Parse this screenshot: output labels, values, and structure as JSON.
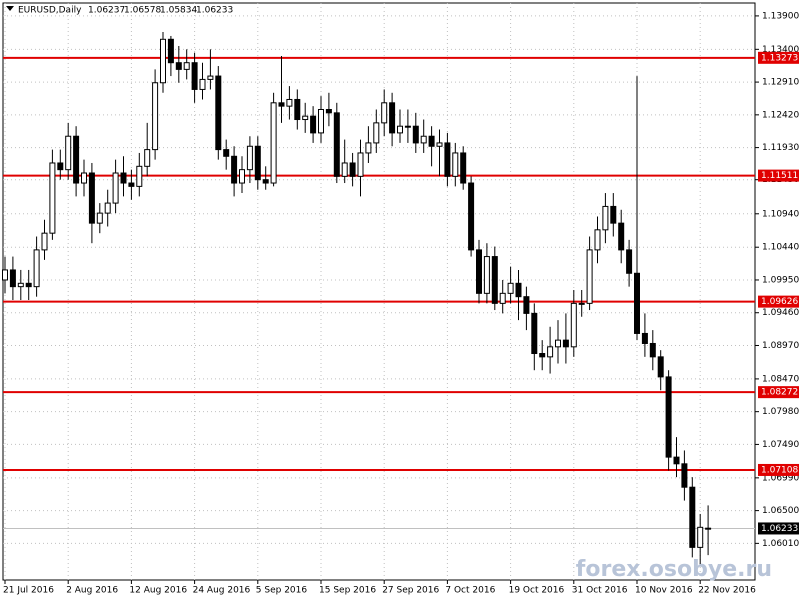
{
  "chart_data": {
    "type": "candlestick",
    "title": "EURUSD,Daily",
    "categories": [
      "21 Jul 2016",
      null,
      null,
      null,
      null,
      null,
      null,
      null,
      "2 Aug 2016",
      null,
      null,
      null,
      null,
      null,
      null,
      null,
      "12 Aug 2016",
      null,
      null,
      null,
      null,
      null,
      null,
      null,
      "24 Aug 2016",
      null,
      null,
      null,
      null,
      null,
      null,
      null,
      "5 Sep 2016",
      null,
      null,
      null,
      null,
      null,
      null,
      null,
      "15 Sep 2016",
      null,
      null,
      null,
      null,
      null,
      null,
      null,
      "27 Sep 2016",
      null,
      null,
      null,
      null,
      null,
      null,
      null,
      "7 Oct 2016",
      null,
      null,
      null,
      null,
      null,
      null,
      null,
      "19 Oct 2016",
      null,
      null,
      null,
      null,
      null,
      null,
      null,
      "31 Oct 2016",
      null,
      null,
      null,
      null,
      null,
      null,
      null,
      "10 Nov 2016",
      null,
      null,
      null,
      null,
      null,
      null,
      null,
      "22 Nov 2016",
      null
    ],
    "open": [
      1.0995,
      1.101,
      1.0985,
      1.099,
      1.0985,
      1.104,
      1.1065,
      1.117,
      1.116,
      1.121,
      1.114,
      1.1155,
      1.108,
      1.1095,
      1.111,
      1.1155,
      1.114,
      1.1135,
      1.1165,
      1.119,
      1.129,
      1.1355,
      1.132,
      1.131,
      1.132,
      1.128,
      1.1295,
      1.13,
      1.119,
      1.118,
      1.114,
      1.116,
      1.1195,
      1.1145,
      1.114,
      1.126,
      1.1255,
      1.1265,
      1.1235,
      1.124,
      1.1215,
      1.125,
      1.1245,
      1.115,
      1.117,
      1.115,
      1.1185,
      1.12,
      1.123,
      1.126,
      1.1215,
      1.1225,
      1.1225,
      1.12,
      1.121,
      1.1195,
      1.12,
      1.115,
      1.1185,
      1.114,
      1.104,
      1.0975,
      1.103,
      1.096,
      1.0975,
      1.099,
      1.097,
      1.0945,
      1.0885,
      1.088,
      1.0895,
      1.0905,
      1.0895,
      1.096,
      1.096,
      1.104,
      1.107,
      1.1105,
      1.108,
      1.104,
      1.1005,
      1.0915,
      1.09,
      1.088,
      1.085,
      1.073,
      1.072,
      1.0685,
      1.0595,
      1.06237
    ],
    "high": [
      1.103,
      1.103,
      1.101,
      1.101,
      1.106,
      1.1085,
      1.119,
      1.119,
      1.123,
      1.1225,
      1.1175,
      1.117,
      1.111,
      1.113,
      1.1175,
      1.118,
      1.116,
      1.1185,
      1.123,
      1.131,
      1.1366,
      1.136,
      1.1345,
      1.134,
      1.1335,
      1.132,
      1.134,
      1.1315,
      1.1205,
      1.1195,
      1.118,
      1.121,
      1.121,
      1.1165,
      1.1275,
      1.133,
      1.1285,
      1.128,
      1.126,
      1.1255,
      1.127,
      1.1275,
      1.126,
      1.1205,
      1.1185,
      1.1205,
      1.1225,
      1.125,
      1.128,
      1.1275,
      1.125,
      1.125,
      1.1245,
      1.1235,
      1.1225,
      1.122,
      1.1215,
      1.12,
      1.1195,
      1.115,
      1.1055,
      1.105,
      1.1045,
      1.0995,
      1.1015,
      1.101,
      1.0985,
      1.096,
      1.0905,
      1.0925,
      1.0935,
      1.0945,
      1.098,
      1.098,
      1.106,
      1.109,
      1.1125,
      1.1125,
      1.11,
      1.1055,
      1.13,
      1.0945,
      1.092,
      1.089,
      1.086,
      1.076,
      1.074,
      1.07,
      1.0645,
      1.06578
    ],
    "low": [
      1.0975,
      1.0965,
      1.0965,
      1.0965,
      1.097,
      1.1025,
      1.1055,
      1.1145,
      1.1145,
      1.112,
      1.112,
      1.105,
      1.1065,
      1.1075,
      1.1095,
      1.112,
      1.1115,
      1.112,
      1.115,
      1.1175,
      1.1275,
      1.13,
      1.129,
      1.1295,
      1.126,
      1.1265,
      1.128,
      1.1175,
      1.116,
      1.112,
      1.1125,
      1.114,
      1.113,
      1.113,
      1.1135,
      1.123,
      1.1235,
      1.122,
      1.1215,
      1.12,
      1.12,
      1.1225,
      1.114,
      1.114,
      1.1135,
      1.112,
      1.117,
      1.1185,
      1.121,
      1.1195,
      1.12,
      1.12,
      1.1185,
      1.1185,
      1.1165,
      1.115,
      1.1135,
      1.1135,
      1.113,
      1.103,
      1.096,
      1.096,
      1.095,
      1.0945,
      1.096,
      1.0935,
      1.092,
      1.086,
      1.086,
      1.0855,
      1.087,
      1.087,
      1.088,
      1.094,
      1.095,
      1.102,
      1.105,
      1.106,
      1.102,
      1.0985,
      1.0905,
      1.088,
      1.086,
      1.083,
      1.071,
      1.07,
      1.0665,
      1.058,
      1.057,
      1.05834
    ],
    "close": [
      1.101,
      1.0985,
      1.099,
      1.0985,
      1.104,
      1.1065,
      1.117,
      1.116,
      1.121,
      1.114,
      1.1155,
      1.108,
      1.1095,
      1.111,
      1.1155,
      1.114,
      1.1135,
      1.1165,
      1.119,
      1.129,
      1.1355,
      1.132,
      1.131,
      1.132,
      1.128,
      1.1295,
      1.13,
      1.119,
      1.118,
      1.114,
      1.116,
      1.1195,
      1.1145,
      1.114,
      1.126,
      1.1255,
      1.1265,
      1.1235,
      1.124,
      1.1215,
      1.125,
      1.1245,
      1.115,
      1.117,
      1.115,
      1.1185,
      1.12,
      1.123,
      1.126,
      1.1215,
      1.1225,
      1.1225,
      1.12,
      1.121,
      1.1195,
      1.12,
      1.115,
      1.1185,
      1.114,
      1.104,
      1.0975,
      1.103,
      1.096,
      1.0975,
      1.099,
      1.097,
      1.0945,
      1.0885,
      1.088,
      1.0895,
      1.0905,
      1.0895,
      1.096,
      1.096,
      1.104,
      1.107,
      1.1105,
      1.108,
      1.104,
      1.1005,
      1.0915,
      1.09,
      1.088,
      1.085,
      1.073,
      1.072,
      1.0685,
      1.0595,
      1.0625,
      1.06233
    ],
    "levels": [
      1.13273,
      1.11511,
      1.09626,
      1.08272,
      1.07108
    ],
    "level_color": "#e00000",
    "ylim": [
      1.05462,
      1.14093
    ],
    "yticks": [
      {
        "value": 1.139,
        "label": "1.13900"
      },
      {
        "value": 1.134,
        "label": "1.13400"
      },
      {
        "value": 1.1291,
        "label": "1.12910"
      },
      {
        "value": 1.1242,
        "label": "1.12420"
      },
      {
        "value": 1.1193,
        "label": "1.11930"
      },
      {
        "value": 1.1145,
        "label": "1.11450"
      },
      {
        "value": 1.1094,
        "label": "1.10940"
      },
      {
        "value": 1.1044,
        "label": "1.10440"
      },
      {
        "value": 1.0995,
        "label": "1.09950"
      },
      {
        "value": 1.0946,
        "label": "1.09460"
      },
      {
        "value": 1.0897,
        "label": "1.08970"
      },
      {
        "value": 1.0847,
        "label": "1.08470"
      },
      {
        "value": 1.0798,
        "label": "1.07980"
      },
      {
        "value": 1.0749,
        "label": "1.07490"
      },
      {
        "value": 1.0699,
        "label": "1.06990"
      },
      {
        "value": 1.065,
        "label": "1.06500"
      },
      {
        "value": 1.0601,
        "label": "1.06010"
      }
    ],
    "grid": true,
    "watermark": "forex.osobye.ru"
  }
}
